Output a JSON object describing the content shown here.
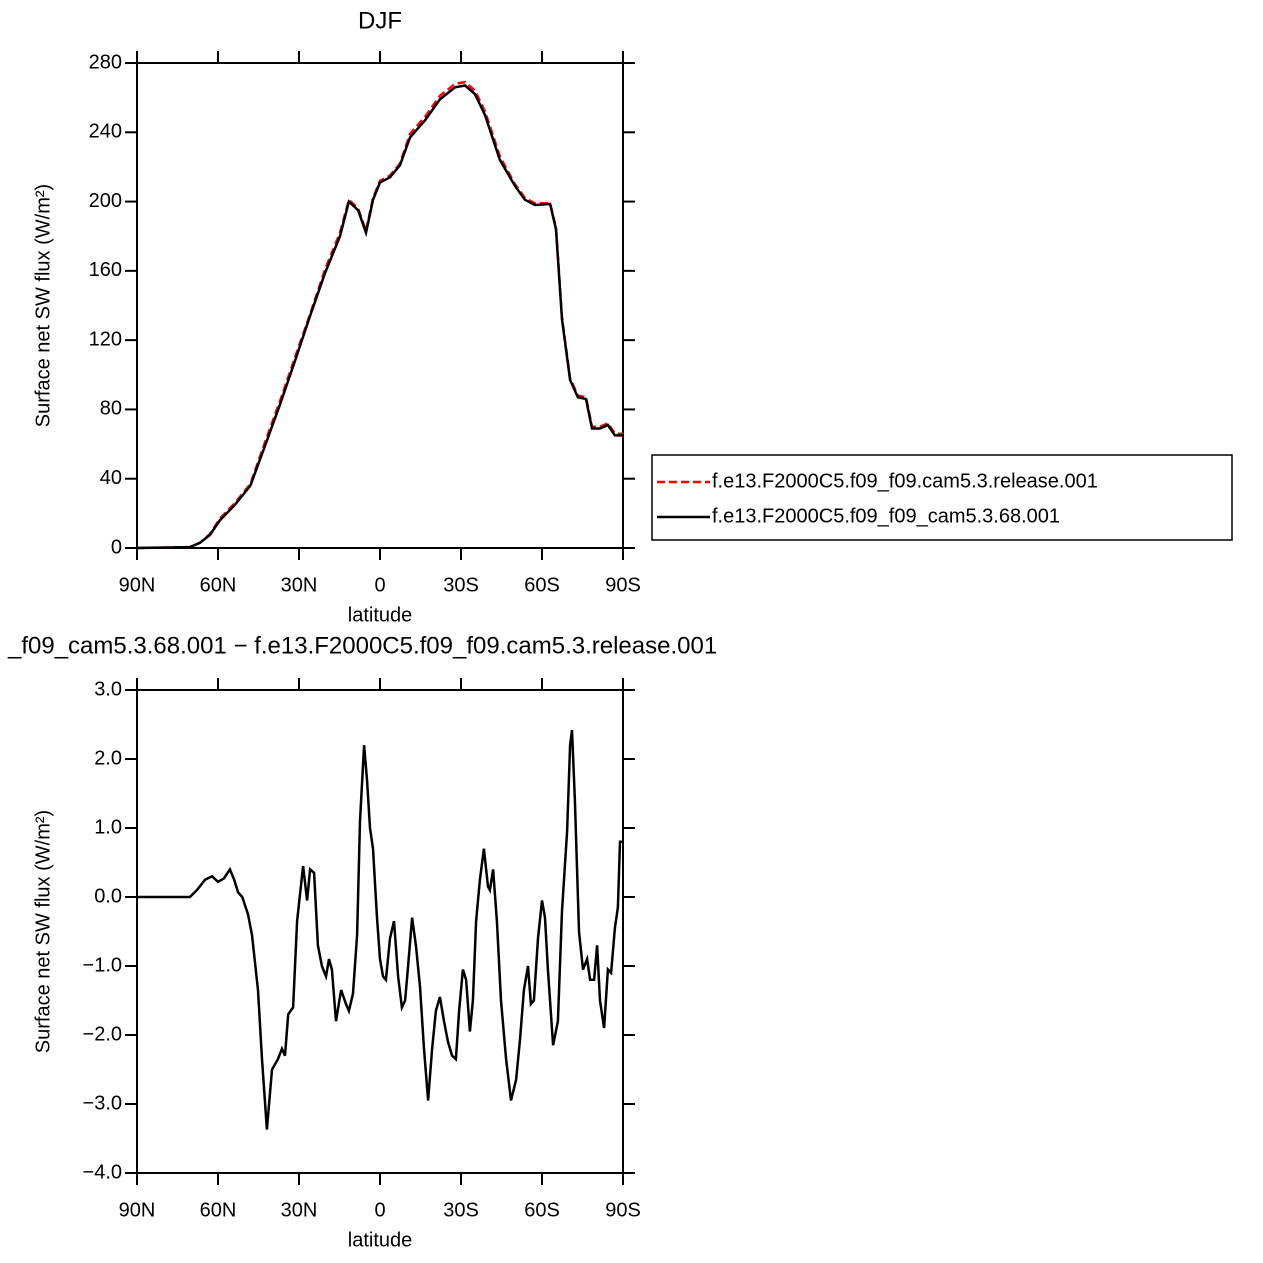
{
  "chart_data": [
    {
      "type": "line",
      "title": "DJF",
      "x_label": "latitude",
      "y_label": "Surface net SW flux (W/m²)",
      "x": [
        90,
        70.4,
        66.7,
        63,
        59.3,
        53.7,
        48,
        42.6,
        37,
        31.5,
        25.9,
        20.3,
        14.8,
        11.5,
        8.1,
        5.2,
        2.6,
        0,
        -3.7,
        -7.4,
        -11.1,
        -16.7,
        -22.2,
        -27.8,
        -31.5,
        -35.2,
        -38.9,
        -44.4,
        -50,
        -53.7,
        -57.4,
        -63,
        -65.2,
        -67.4,
        -70.4,
        -73.3,
        -76.3,
        -78.5,
        -81.5,
        -84.4,
        -87,
        -90
      ],
      "series": [
        {
          "name": "f.e13.F2000C5.f09_f09.cam5.3.release.001",
          "color": "#ff0000",
          "line_style": "dashed",
          "values": [
            0,
            0.5,
            3,
            8,
            17,
            26,
            37,
            61,
            85,
            110,
            135,
            161,
            182,
            201,
            196,
            183,
            202,
            212,
            215,
            222,
            239,
            249,
            261,
            268,
            269,
            264,
            252,
            226,
            210,
            202,
            199,
            199,
            185,
            133,
            98,
            88,
            87,
            70,
            70,
            72,
            66,
            66
          ]
        },
        {
          "name": "f.e13.F2000C5.f09_f09_cam5.3.68.001",
          "color": "#000000",
          "line_style": "solid",
          "values": [
            0,
            0.5,
            3,
            7.5,
            16,
            25,
            36,
            59,
            83,
            108,
            134,
            159,
            180,
            200,
            195,
            182,
            201,
            211,
            214,
            221,
            237,
            247,
            259,
            266,
            267,
            262,
            250,
            224,
            209,
            201,
            198,
            198.6,
            184,
            132,
            97,
            87,
            86,
            69,
            69,
            71,
            65,
            65
          ]
        }
      ],
      "xlim": [
        90,
        -90
      ],
      "xticks": [
        {
          "value": 90,
          "label": "90N"
        },
        {
          "value": 60,
          "label": "60N"
        },
        {
          "value": 30,
          "label": "30N"
        },
        0,
        {
          "value": -30,
          "label": "30S"
        },
        {
          "value": -60,
          "label": "60S"
        },
        {
          "value": -90,
          "label": "90S"
        }
      ],
      "ylim": [
        0,
        280
      ],
      "yticks": [
        0,
        40,
        80,
        120,
        160,
        200,
        240,
        280
      ],
      "legend_position": "right"
    },
    {
      "type": "line",
      "title": "_f09_cam5.3.68.001 − f.e13.F2000C5.f09_f09.cam5.3.release.001",
      "x_label": "latitude",
      "y_label": "Surface net SW flux (W/m²)",
      "x": [
        90,
        74,
        70.4,
        67.8,
        64.8,
        62.2,
        60,
        57.8,
        55.6,
        54,
        52.6,
        51,
        48.9,
        47.4,
        45.2,
        43.7,
        41.9,
        40,
        37.8,
        36.3,
        35.2,
        34,
        32.2,
        30.7,
        28.5,
        27,
        25.9,
        24.4,
        23,
        21.5,
        20,
        18.9,
        17.8,
        16.3,
        14.4,
        12.6,
        11.5,
        10,
        8.5,
        7.4,
        5.9,
        4.8,
        3.7,
        2.6,
        1.1,
        0,
        -1.1,
        -2.2,
        -3.7,
        -5.2,
        -6.7,
        -8.1,
        -9.3,
        -10.4,
        -11.9,
        -13.3,
        -14.8,
        -16.3,
        -17.8,
        -19.3,
        -20.7,
        -22.2,
        -23.7,
        -25.2,
        -26.7,
        -28.1,
        -29.3,
        -30.7,
        -31.9,
        -33.3,
        -34.4,
        -35.6,
        -37,
        -38.5,
        -40,
        -40.7,
        -41.9,
        -43.3,
        -44.8,
        -46.7,
        -48.5,
        -50.4,
        -51.9,
        -53.3,
        -54.8,
        -55.9,
        -57,
        -58.5,
        -60,
        -61.1,
        -62.2,
        -64.1,
        -65.9,
        -67.4,
        -69.3,
        -70.4,
        -71.1,
        -72.2,
        -73.7,
        -75.2,
        -76.7,
        -77.8,
        -79.3,
        -80.4,
        -81.5,
        -83,
        -84.4,
        -85.6,
        -87,
        -88.1,
        -88.9,
        -90
      ],
      "series": [
        {
          "color": "#000000",
          "line_style": "solid",
          "values": [
            0,
            0,
            0,
            0.1,
            0.25,
            0.3,
            0.22,
            0.27,
            0.4,
            0.25,
            0.07,
            0,
            -0.25,
            -0.55,
            -1.35,
            -2.35,
            -3.37,
            -2.5,
            -2.35,
            -2.2,
            -2.3,
            -1.7,
            -1.6,
            -0.35,
            0.45,
            -0.05,
            0.4,
            0.35,
            -0.7,
            -1.0,
            -1.15,
            -0.9,
            -1.05,
            -1.8,
            -1.35,
            -1.55,
            -1.65,
            -1.4,
            -0.55,
            1.1,
            2.2,
            1.7,
            1.0,
            0.7,
            -0.3,
            -0.9,
            -1.15,
            -1.2,
            -0.6,
            -0.35,
            -1.15,
            -1.6,
            -1.5,
            -1.0,
            -0.3,
            -0.7,
            -1.3,
            -2.2,
            -2.95,
            -2.2,
            -1.65,
            -1.45,
            -1.8,
            -2.1,
            -2.3,
            -2.35,
            -1.65,
            -1.05,
            -1.2,
            -1.95,
            -1.5,
            -0.35,
            0.25,
            0.7,
            0.15,
            0.1,
            0.4,
            -0.35,
            -1.5,
            -2.35,
            -2.95,
            -2.65,
            -2.05,
            -1.35,
            -1.0,
            -1.55,
            -1.5,
            -0.6,
            -0.05,
            -0.3,
            -1.05,
            -2.15,
            -1.8,
            -0.2,
            0.95,
            2.2,
            2.42,
            1.4,
            -0.5,
            -1.05,
            -0.9,
            -1.2,
            -1.2,
            -0.7,
            -1.5,
            -1.9,
            -1.05,
            -1.1,
            -0.45,
            -0.15,
            0.8,
            0.8
          ]
        }
      ],
      "xlim": [
        90,
        -90
      ],
      "xticks": [
        {
          "value": 90,
          "label": "90N"
        },
        {
          "value": 60,
          "label": "60N"
        },
        {
          "value": 30,
          "label": "30N"
        },
        0,
        {
          "value": -30,
          "label": "30S"
        },
        {
          "value": -60,
          "label": "60S"
        },
        {
          "value": -90,
          "label": "90S"
        }
      ],
      "ylim": [
        -4,
        3
      ],
      "yticks": [
        {
          "value": -4,
          "label": "−4.0"
        },
        {
          "value": -3,
          "label": "−3.0"
        },
        {
          "value": -2,
          "label": "−2.0"
        },
        {
          "value": -1,
          "label": "−1.0"
        },
        {
          "value": 0,
          "label": "0.0"
        },
        {
          "value": 1,
          "label": "1.0"
        },
        {
          "value": 2,
          "label": "2.0"
        },
        {
          "value": 3,
          "label": "3.0"
        }
      ]
    }
  ]
}
